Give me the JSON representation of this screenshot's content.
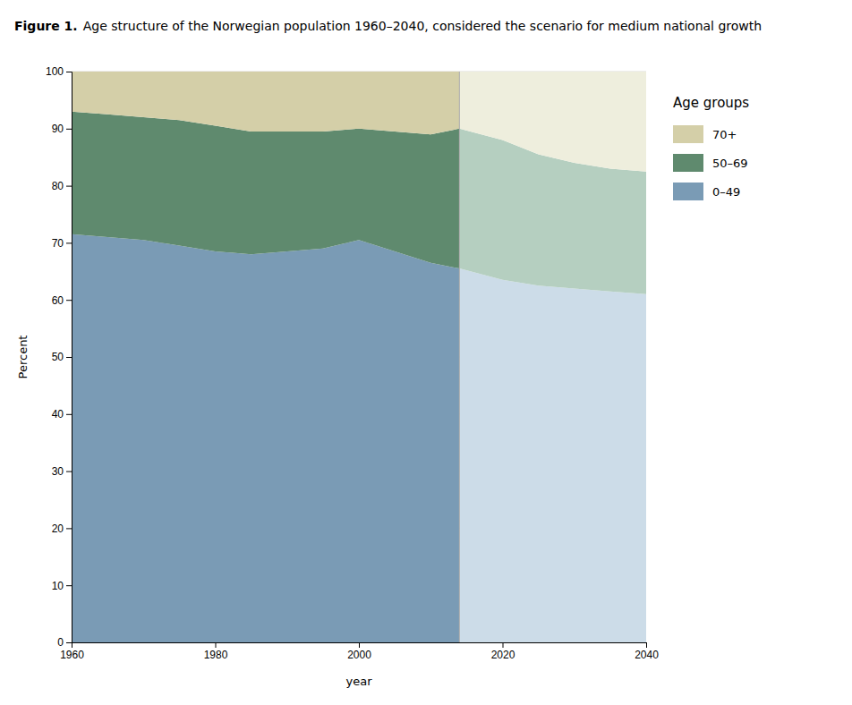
{
  "chart_data": {
    "type": "area",
    "stacked": true,
    "title": "Figure 1.",
    "subtitle": "Age structure of the Norwegian population 1960–2040, considered the scenario for medium national growth",
    "x_label": "year",
    "y_label": "Percent",
    "x": [
      1960,
      1965,
      1970,
      1975,
      1980,
      1985,
      1990,
      1995,
      2000,
      2005,
      2010,
      2014,
      2020,
      2025,
      2030,
      2035,
      2040
    ],
    "divider_x": 2014,
    "divider_color": "#aaaaaa",
    "series": [
      {
        "name": "0–49",
        "colors": [
          "#7a9bb5",
          "#ccdce8"
        ],
        "values": [
          71.5,
          71.0,
          70.5,
          69.5,
          68.5,
          68.0,
          68.5,
          69.0,
          70.5,
          68.5,
          66.5,
          65.5,
          63.5,
          62.5,
          62.0,
          61.5,
          61.0
        ]
      },
      {
        "name": "50–69",
        "colors": [
          "#5f8a6e",
          "#b5cfc0"
        ],
        "values": [
          21.5,
          21.5,
          21.5,
          22.0,
          22.0,
          21.5,
          21.0,
          20.5,
          19.5,
          21.0,
          22.5,
          24.5,
          24.5,
          23.0,
          22.0,
          21.5,
          21.5
        ]
      },
      {
        "name": "70+",
        "colors": [
          "#d4cfa8",
          "#eeeedd"
        ],
        "values": [
          7.0,
          7.5,
          8.0,
          8.5,
          9.5,
          10.5,
          10.5,
          10.5,
          10.0,
          10.5,
          11.0,
          10.0,
          12.0,
          14.5,
          16.0,
          17.0,
          17.5
        ]
      }
    ],
    "xlim": [
      1960,
      2040
    ],
    "ylim": [
      0,
      100
    ],
    "xticks": [
      1960,
      1980,
      2000,
      2020,
      2040
    ],
    "yticks": [
      0,
      10,
      20,
      30,
      40,
      50,
      60,
      70,
      80,
      90,
      100
    ],
    "grid": true,
    "grid_color": "#cccccc",
    "legend": "right",
    "legend_title": "Age groups"
  }
}
